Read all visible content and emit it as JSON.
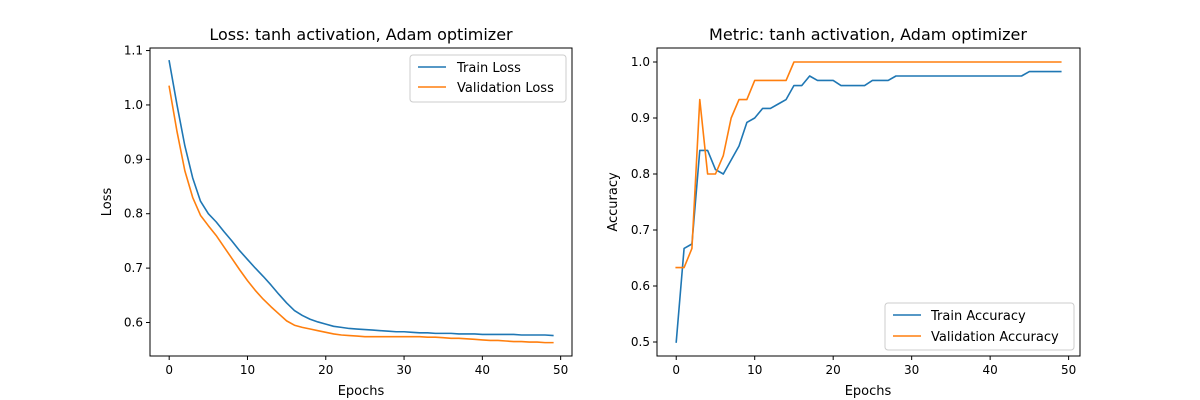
{
  "chart_data": [
    {
      "type": "line",
      "title": "Loss: tanh activation, Adam optimizer",
      "xlabel": "Epochs",
      "ylabel": "Loss",
      "xlim": [
        -2.45,
        51.45
      ],
      "ylim": [
        0.5384,
        1.1047
      ],
      "xticks": [
        0,
        10,
        20,
        30,
        40,
        50
      ],
      "yticks": [
        0.6,
        0.7,
        0.8,
        0.9,
        1.0,
        1.1
      ],
      "ytick_labels": [
        "0.6",
        "0.7",
        "0.8",
        "0.9",
        "1.0",
        "1.1"
      ],
      "legend_position": "upper-right",
      "x": [
        0,
        1,
        2,
        3,
        4,
        5,
        6,
        7,
        8,
        9,
        10,
        11,
        12,
        13,
        14,
        15,
        16,
        17,
        18,
        19,
        20,
        21,
        22,
        23,
        24,
        25,
        26,
        27,
        28,
        29,
        30,
        31,
        32,
        33,
        34,
        35,
        36,
        37,
        38,
        39,
        40,
        41,
        42,
        43,
        44,
        45,
        46,
        47,
        48,
        49
      ],
      "series": [
        {
          "name": "Train Loss",
          "color": "#1f77b4",
          "values": [
            1.081,
            1.0,
            0.925,
            0.866,
            0.823,
            0.8,
            0.785,
            0.767,
            0.75,
            0.732,
            0.716,
            0.7,
            0.685,
            0.669,
            0.652,
            0.636,
            0.622,
            0.613,
            0.606,
            0.601,
            0.597,
            0.593,
            0.591,
            0.589,
            0.588,
            0.587,
            0.586,
            0.585,
            0.584,
            0.583,
            0.583,
            0.582,
            0.581,
            0.581,
            0.58,
            0.58,
            0.58,
            0.579,
            0.579,
            0.579,
            0.578,
            0.578,
            0.578,
            0.578,
            0.578,
            0.577,
            0.577,
            0.577,
            0.577,
            0.576
          ]
        },
        {
          "name": "Validation Loss",
          "color": "#ff7f0e",
          "values": [
            1.034,
            0.951,
            0.879,
            0.83,
            0.797,
            0.778,
            0.76,
            0.739,
            0.718,
            0.697,
            0.677,
            0.659,
            0.643,
            0.629,
            0.616,
            0.603,
            0.595,
            0.591,
            0.588,
            0.585,
            0.582,
            0.579,
            0.577,
            0.576,
            0.575,
            0.574,
            0.574,
            0.574,
            0.574,
            0.574,
            0.574,
            0.574,
            0.574,
            0.573,
            0.573,
            0.572,
            0.571,
            0.571,
            0.57,
            0.569,
            0.568,
            0.567,
            0.567,
            0.566,
            0.565,
            0.565,
            0.564,
            0.564,
            0.563,
            0.563
          ]
        }
      ]
    },
    {
      "type": "line",
      "title": "Metric: tanh activation, Adam optimizer",
      "xlabel": "Epochs",
      "ylabel": "Accuracy",
      "xlim": [
        -2.45,
        51.45
      ],
      "ylim": [
        0.475,
        1.025
      ],
      "xticks": [
        0,
        10,
        20,
        30,
        40,
        50
      ],
      "yticks": [
        0.5,
        0.6,
        0.7,
        0.8,
        0.9,
        1.0
      ],
      "ytick_labels": [
        "0.5",
        "0.6",
        "0.7",
        "0.8",
        "0.9",
        "1.0"
      ],
      "legend_position": "lower-right",
      "x": [
        0,
        1,
        2,
        3,
        4,
        5,
        6,
        7,
        8,
        9,
        10,
        11,
        12,
        13,
        14,
        15,
        16,
        17,
        18,
        19,
        20,
        21,
        22,
        23,
        24,
        25,
        26,
        27,
        28,
        29,
        30,
        31,
        32,
        33,
        34,
        35,
        36,
        37,
        38,
        39,
        40,
        41,
        42,
        43,
        44,
        45,
        46,
        47,
        48,
        49
      ],
      "series": [
        {
          "name": "Train Accuracy",
          "color": "#1f77b4",
          "values": [
            0.5,
            0.667,
            0.675,
            0.842,
            0.842,
            0.808,
            0.8,
            0.825,
            0.85,
            0.892,
            0.9,
            0.917,
            0.917,
            0.925,
            0.933,
            0.958,
            0.958,
            0.975,
            0.967,
            0.967,
            0.967,
            0.958,
            0.958,
            0.958,
            0.958,
            0.967,
            0.967,
            0.967,
            0.975,
            0.975,
            0.975,
            0.975,
            0.975,
            0.975,
            0.975,
            0.975,
            0.975,
            0.975,
            0.975,
            0.975,
            0.975,
            0.975,
            0.975,
            0.975,
            0.975,
            0.983,
            0.983,
            0.983,
            0.983,
            0.983
          ]
        },
        {
          "name": "Validation Accuracy",
          "color": "#ff7f0e",
          "values": [
            0.633,
            0.633,
            0.667,
            0.933,
            0.8,
            0.8,
            0.833,
            0.9,
            0.933,
            0.933,
            0.967,
            0.967,
            0.967,
            0.967,
            0.967,
            1.0,
            1.0,
            1.0,
            1.0,
            1.0,
            1.0,
            1.0,
            1.0,
            1.0,
            1.0,
            1.0,
            1.0,
            1.0,
            1.0,
            1.0,
            1.0,
            1.0,
            1.0,
            1.0,
            1.0,
            1.0,
            1.0,
            1.0,
            1.0,
            1.0,
            1.0,
            1.0,
            1.0,
            1.0,
            1.0,
            1.0,
            1.0,
            1.0,
            1.0,
            1.0
          ]
        }
      ]
    }
  ]
}
